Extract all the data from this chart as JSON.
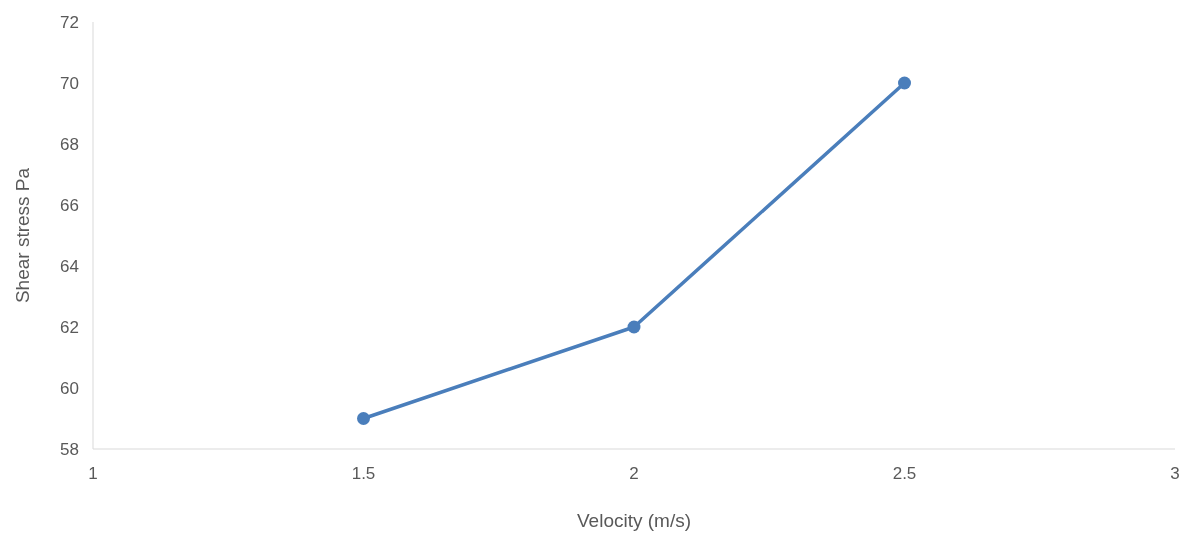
{
  "chart_data": {
    "type": "line",
    "xlabel": "Velocity (m/s)",
    "ylabel": "Shear stress Pa",
    "x": [
      1.5,
      2,
      2.5
    ],
    "series": [
      {
        "color": "#4a7ebb",
        "values": [
          59,
          62,
          70
        ]
      }
    ],
    "xlim": [
      1,
      3
    ],
    "xticks": [
      1,
      1.5,
      2,
      2.5,
      3
    ],
    "ylim": [
      58,
      72
    ],
    "yticks": [
      58,
      60,
      62,
      64,
      66,
      68,
      70,
      72
    ],
    "marker": "circle",
    "line_style": "solid",
    "grid": false
  }
}
